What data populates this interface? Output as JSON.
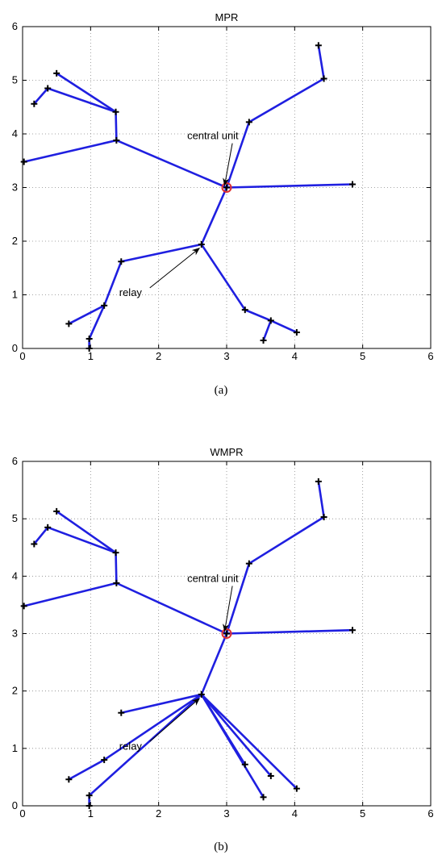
{
  "chart_data": [
    {
      "type": "network",
      "title": "MPR",
      "caption": "(a)",
      "xlim": [
        0,
        6
      ],
      "ylim": [
        0,
        6
      ],
      "xticks": [
        "0",
        "1",
        "2",
        "3",
        "4",
        "5",
        "6"
      ],
      "yticks": [
        "0",
        "1",
        "2",
        "3",
        "4",
        "5",
        "6"
      ],
      "grid": true,
      "colors": {
        "link": "#1f1fe0",
        "node": "#000000",
        "central": "#e03030"
      },
      "central_unit": [
        3.0,
        3.0
      ],
      "annotations": [
        {
          "text": "central unit",
          "x": 2.42,
          "y": 3.9,
          "target": [
            2.97,
            3.04
          ]
        },
        {
          "text": "relay",
          "x": 1.42,
          "y": 0.98,
          "target": [
            2.6,
            1.87
          ]
        }
      ],
      "nodes": [
        [
          3.0,
          3.0
        ],
        [
          3.33,
          4.22
        ],
        [
          4.43,
          5.03
        ],
        [
          4.35,
          5.65
        ],
        [
          4.85,
          3.06
        ],
        [
          1.38,
          3.88
        ],
        [
          0.02,
          3.48
        ],
        [
          1.37,
          4.41
        ],
        [
          0.37,
          4.85
        ],
        [
          0.17,
          4.56
        ],
        [
          0.5,
          5.13
        ],
        [
          2.63,
          1.94
        ],
        [
          1.45,
          1.62
        ],
        [
          1.2,
          0.8
        ],
        [
          0.68,
          0.46
        ],
        [
          0.98,
          0.18
        ],
        [
          0.98,
          0.0
        ],
        [
          3.27,
          0.72
        ],
        [
          3.65,
          0.52
        ],
        [
          3.54,
          0.15
        ],
        [
          4.03,
          0.3
        ]
      ],
      "edges": [
        [
          [
            3.0,
            3.0
          ],
          [
            3.33,
            4.22
          ]
        ],
        [
          [
            3.33,
            4.22
          ],
          [
            4.43,
            5.03
          ]
        ],
        [
          [
            4.43,
            5.03
          ],
          [
            4.35,
            5.65
          ]
        ],
        [
          [
            3.0,
            3.0
          ],
          [
            4.85,
            3.06
          ]
        ],
        [
          [
            3.0,
            3.0
          ],
          [
            1.38,
            3.88
          ]
        ],
        [
          [
            1.38,
            3.88
          ],
          [
            0.02,
            3.48
          ]
        ],
        [
          [
            1.38,
            3.88
          ],
          [
            1.37,
            4.41
          ]
        ],
        [
          [
            1.37,
            4.41
          ],
          [
            0.37,
            4.85
          ]
        ],
        [
          [
            0.37,
            4.85
          ],
          [
            0.17,
            4.56
          ]
        ],
        [
          [
            1.37,
            4.41
          ],
          [
            0.5,
            5.13
          ]
        ],
        [
          [
            3.0,
            3.0
          ],
          [
            2.63,
            1.94
          ]
        ],
        [
          [
            2.63,
            1.94
          ],
          [
            1.45,
            1.62
          ]
        ],
        [
          [
            1.45,
            1.62
          ],
          [
            1.2,
            0.8
          ]
        ],
        [
          [
            1.2,
            0.8
          ],
          [
            0.68,
            0.46
          ]
        ],
        [
          [
            1.2,
            0.8
          ],
          [
            0.98,
            0.18
          ]
        ],
        [
          [
            0.98,
            0.18
          ],
          [
            0.98,
            0.0
          ]
        ],
        [
          [
            2.63,
            1.94
          ],
          [
            3.27,
            0.72
          ]
        ],
        [
          [
            3.27,
            0.72
          ],
          [
            3.65,
            0.52
          ]
        ],
        [
          [
            3.65,
            0.52
          ],
          [
            3.54,
            0.15
          ]
        ],
        [
          [
            3.65,
            0.52
          ],
          [
            4.03,
            0.3
          ]
        ]
      ]
    },
    {
      "type": "network",
      "title": "WMPR",
      "caption": "(b)",
      "xlim": [
        0,
        6
      ],
      "ylim": [
        0,
        6
      ],
      "xticks": [
        "0",
        "1",
        "2",
        "3",
        "4",
        "5",
        "6"
      ],
      "yticks": [
        "0",
        "1",
        "2",
        "3",
        "4",
        "5",
        "6"
      ],
      "grid": true,
      "colors": {
        "link": "#1f1fe0",
        "node": "#000000",
        "central": "#e03030"
      },
      "central_unit": [
        3.0,
        3.0
      ],
      "annotations": [
        {
          "text": "central unit",
          "x": 2.42,
          "y": 3.9,
          "target": [
            2.97,
            3.04
          ]
        },
        {
          "text": "relay",
          "x": 1.42,
          "y": 0.98,
          "target": [
            2.6,
            1.87
          ]
        }
      ],
      "nodes": [
        [
          3.0,
          3.0
        ],
        [
          3.33,
          4.22
        ],
        [
          4.43,
          5.03
        ],
        [
          4.35,
          5.65
        ],
        [
          4.85,
          3.06
        ],
        [
          1.38,
          3.88
        ],
        [
          0.02,
          3.48
        ],
        [
          1.37,
          4.41
        ],
        [
          0.37,
          4.85
        ],
        [
          0.17,
          4.56
        ],
        [
          0.5,
          5.13
        ],
        [
          2.63,
          1.94
        ],
        [
          1.45,
          1.62
        ],
        [
          1.2,
          0.8
        ],
        [
          0.68,
          0.46
        ],
        [
          0.98,
          0.18
        ],
        [
          0.98,
          0.0
        ],
        [
          3.27,
          0.72
        ],
        [
          3.65,
          0.52
        ],
        [
          3.54,
          0.15
        ],
        [
          4.03,
          0.3
        ]
      ],
      "edges": [
        [
          [
            3.0,
            3.0
          ],
          [
            3.33,
            4.22
          ]
        ],
        [
          [
            3.33,
            4.22
          ],
          [
            4.43,
            5.03
          ]
        ],
        [
          [
            4.43,
            5.03
          ],
          [
            4.35,
            5.65
          ]
        ],
        [
          [
            3.0,
            3.0
          ],
          [
            4.85,
            3.06
          ]
        ],
        [
          [
            3.0,
            3.0
          ],
          [
            1.38,
            3.88
          ]
        ],
        [
          [
            1.38,
            3.88
          ],
          [
            0.02,
            3.48
          ]
        ],
        [
          [
            1.38,
            3.88
          ],
          [
            1.37,
            4.41
          ]
        ],
        [
          [
            1.37,
            4.41
          ],
          [
            0.37,
            4.85
          ]
        ],
        [
          [
            0.37,
            4.85
          ],
          [
            0.17,
            4.56
          ]
        ],
        [
          [
            1.37,
            4.41
          ],
          [
            0.5,
            5.13
          ]
        ],
        [
          [
            3.0,
            3.0
          ],
          [
            2.63,
            1.94
          ]
        ],
        [
          [
            2.63,
            1.94
          ],
          [
            1.45,
            1.62
          ]
        ],
        [
          [
            2.63,
            1.94
          ],
          [
            1.2,
            0.8
          ]
        ],
        [
          [
            1.2,
            0.8
          ],
          [
            0.68,
            0.46
          ]
        ],
        [
          [
            2.63,
            1.94
          ],
          [
            0.98,
            0.18
          ]
        ],
        [
          [
            0.98,
            0.18
          ],
          [
            0.98,
            0.0
          ]
        ],
        [
          [
            2.63,
            1.94
          ],
          [
            3.27,
            0.72
          ]
        ],
        [
          [
            2.63,
            1.94
          ],
          [
            3.65,
            0.52
          ]
        ],
        [
          [
            2.63,
            1.94
          ],
          [
            3.54,
            0.15
          ]
        ],
        [
          [
            2.63,
            1.94
          ],
          [
            4.03,
            0.3
          ]
        ]
      ]
    }
  ]
}
